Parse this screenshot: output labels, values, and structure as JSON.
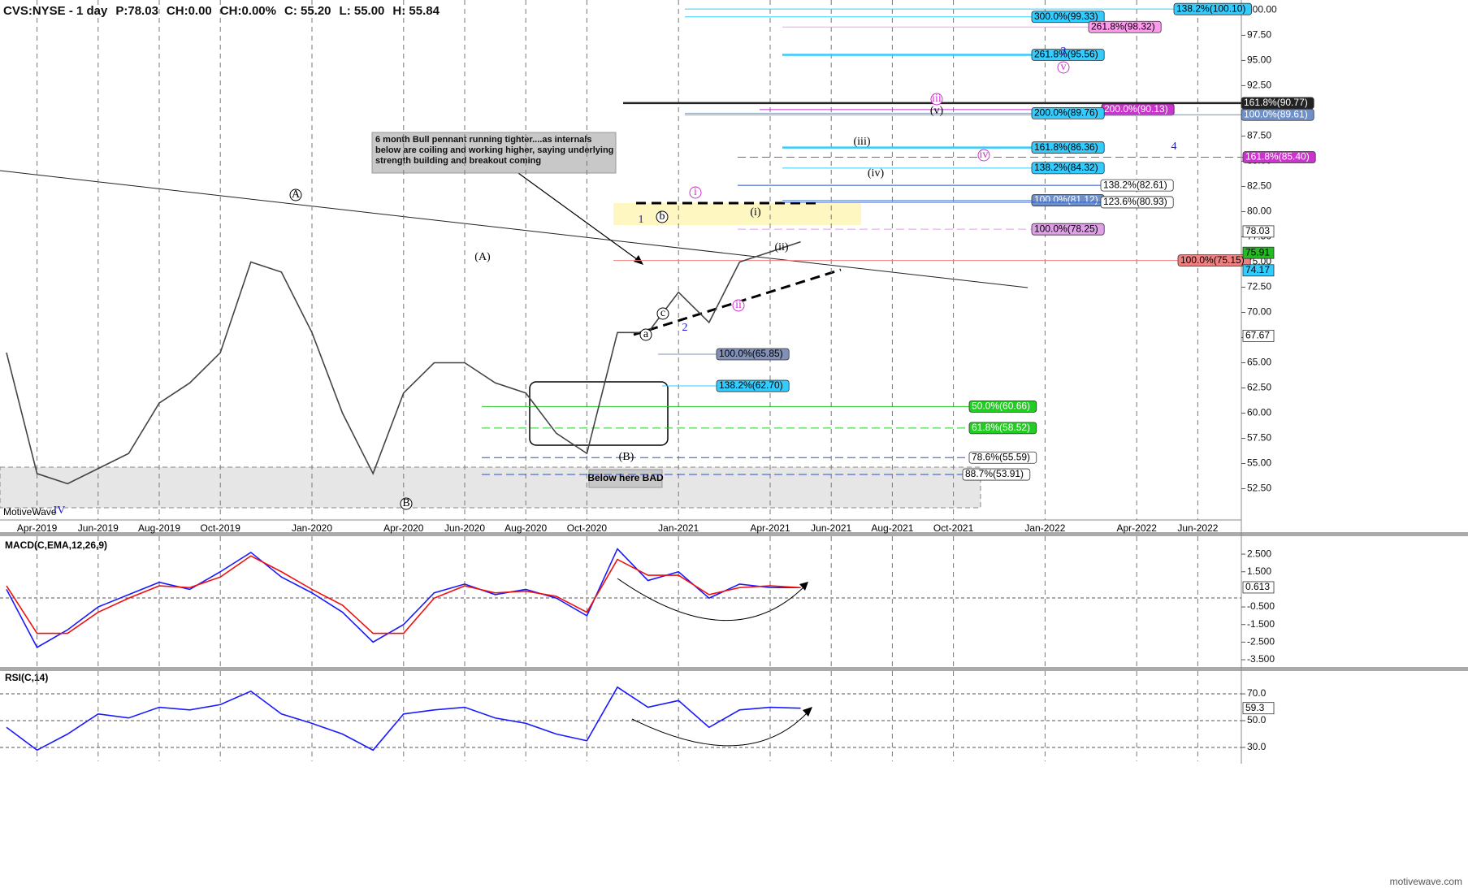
{
  "header": {
    "symbol": "CVS:NYSE - 1 day",
    "price": "P:78.03",
    "change": "CH:0.00",
    "change_pct": "CH:0.00%",
    "close": "C: 55.20",
    "low": "L: 55.00",
    "high": "H: 55.84"
  },
  "annotation": "6 month Bull pennant running tighter....as internals below are coiling and working higher, saying underlying strength building and breakout coming",
  "bad_note": "Below here BAD",
  "brand": "MotiveWave",
  "footer": "motivewave.com",
  "waves": [
    "A",
    "B",
    "(A)",
    "(B)",
    "1",
    "2",
    "3",
    "4",
    "IV",
    "i",
    "ii",
    "iii",
    "iv",
    "v",
    "(i)",
    "(ii)",
    "(iii)",
    "(iv)",
    "(v)",
    "a",
    "b",
    "c"
  ],
  "chart_data": [
    {
      "type": "line",
      "title": "CVS:NYSE - 1 day",
      "xlim": [
        "2019-03",
        "2022-07"
      ],
      "xticks": [
        {
          "value": "2019-04",
          "label": "Apr-2019"
        },
        {
          "value": "2019-06",
          "label": "Jun-2019"
        },
        {
          "value": "2019-08",
          "label": "Aug-2019"
        },
        {
          "value": "2019-10",
          "label": "Oct-2019"
        },
        {
          "value": "2020-01",
          "label": "Jan-2020"
        },
        {
          "value": "2020-04",
          "label": "Apr-2020"
        },
        {
          "value": "2020-06",
          "label": "Jun-2020"
        },
        {
          "value": "2020-08",
          "label": "Aug-2020"
        },
        {
          "value": "2020-10",
          "label": "Oct-2020"
        },
        {
          "value": "2021-01",
          "label": "Jan-2021"
        },
        {
          "value": "2021-04",
          "label": "Apr-2021"
        },
        {
          "value": "2021-06",
          "label": "Jun-2021"
        },
        {
          "value": "2021-08",
          "label": "Aug-2021"
        },
        {
          "value": "2021-10",
          "label": "Oct-2021"
        },
        {
          "value": "2022-01",
          "label": "Jan-2022"
        },
        {
          "value": "2022-04",
          "label": "Apr-2022"
        },
        {
          "value": "2022-06",
          "label": "Jun-2022"
        }
      ],
      "x": [
        "2019-03",
        "2019-04",
        "2019-05",
        "2019-06",
        "2019-07",
        "2019-08",
        "2019-09",
        "2019-10",
        "2019-11",
        "2019-12",
        "2020-01",
        "2020-02",
        "2020-03",
        "2020-04",
        "2020-05",
        "2020-06",
        "2020-07",
        "2020-08",
        "2020-09",
        "2020-10",
        "2020-11",
        "2020-12",
        "2021-01",
        "2021-02",
        "2021-03",
        "2021-04",
        "2021-05"
      ],
      "series": [
        {
          "color": "#444444",
          "values": [
            66,
            54,
            53,
            54.5,
            56,
            61,
            63,
            66,
            75,
            74,
            68,
            60,
            54,
            62,
            65,
            65,
            63,
            62,
            58,
            56,
            68,
            68,
            72,
            69,
            75,
            76,
            77
          ]
        }
      ],
      "ylim": [
        49.4,
        101
      ],
      "yticks": [
        {
          "value": 100,
          "label": "100.00"
        },
        {
          "value": 97.5,
          "label": "97.50"
        },
        {
          "value": 95,
          "label": "95.00"
        },
        {
          "value": 92.5,
          "label": "92.50"
        },
        {
          "value": 90,
          "label": "90.00"
        },
        {
          "value": 87.5,
          "label": "87.50"
        },
        {
          "value": 85,
          "label": "85.00"
        },
        {
          "value": 82.5,
          "label": "82.50"
        },
        {
          "value": 80,
          "label": "80.00"
        },
        {
          "value": 77.5,
          "label": "77.50"
        },
        {
          "value": 75,
          "label": "75.00"
        },
        {
          "value": 72.5,
          "label": "72.50"
        },
        {
          "value": 70,
          "label": "70.00"
        },
        {
          "value": 67.5,
          "label": "67.50"
        },
        {
          "value": 65,
          "label": "65.00"
        },
        {
          "value": 62.5,
          "label": "62.50"
        },
        {
          "value": 60,
          "label": "60.00"
        },
        {
          "value": 57.5,
          "label": "57.50"
        },
        {
          "value": 55,
          "label": "55.00"
        },
        {
          "value": 52.5,
          "label": "52.50"
        }
      ],
      "markers": [
        78.03,
        75.91,
        74.17,
        67.67
      ],
      "marker_colors": [
        "#ffffff",
        "#22bb22",
        "#33ccff",
        "#ffffff"
      ],
      "levels": [
        {
          "value": 100.1,
          "label": "138.2%(100.10)",
          "color": "#33ccff"
        },
        {
          "value": 99.33,
          "label": "300.0%(99.33)",
          "color": "#33ccff"
        },
        {
          "value": 98.32,
          "label": "261.8%(98.32)",
          "color": "#ff99ee"
        },
        {
          "value": 95.56,
          "label": "261.8%(95.56)",
          "color": "#33ccff"
        },
        {
          "value": 90.13,
          "label": "200.0%(90.13)",
          "color": "#cc33cc"
        },
        {
          "value": 90.77,
          "label": "161.8%(90.77)",
          "color": "#222222"
        },
        {
          "value": 89.61,
          "label": "100.0%(89.61)",
          "color": "#6f8fc8"
        },
        {
          "value": 89.76,
          "label": "200.0%(89.76)",
          "color": "#33ccff"
        },
        {
          "value": 86.36,
          "label": "161.8%(86.36)",
          "color": "#33ccff"
        },
        {
          "value": 85.4,
          "label": "161.8%(85.40)",
          "color": "#cc33cc"
        },
        {
          "value": 84.32,
          "label": "138.2%(84.32)",
          "color": "#33ccff"
        },
        {
          "value": 82.61,
          "label": "138.2%(82.61)",
          "color": "#ffffff"
        },
        {
          "value": 81.12,
          "label": "100.0%(81.12)",
          "color": "#6f8fc8"
        },
        {
          "value": 80.93,
          "label": "123.6%(80.93)",
          "color": "#ffffff"
        },
        {
          "value": 78.25,
          "label": "100.0%(78.25)",
          "color": "#e0a0e8"
        },
        {
          "value": 75.15,
          "label": "100.0%(75.15)",
          "color": "#f08080"
        },
        {
          "value": 65.85,
          "label": "100.0%(65.85)",
          "color": "#8090b8"
        },
        {
          "value": 62.7,
          "label": "138.2%(62.70)",
          "color": "#33ccff"
        },
        {
          "value": 60.66,
          "label": "50.0%(60.66)",
          "color": "#22cc22"
        },
        {
          "value": 58.52,
          "label": "61.8%(58.52)",
          "color": "#22cc22"
        },
        {
          "value": 55.59,
          "label": "78.6%(55.59)",
          "color": "#ffffff"
        },
        {
          "value": 53.91,
          "label": "88.7%(53.91)",
          "color": "#ffffff"
        }
      ]
    },
    {
      "type": "line",
      "title": "MACD(C,EMA,12,26,9)",
      "series": [
        {
          "color": "#1a1aff",
          "values": [
            0.5,
            -2.8,
            -1.8,
            -0.5,
            0.2,
            0.9,
            0.5,
            1.5,
            2.6,
            1.2,
            0.3,
            -0.8,
            -2.5,
            -1.5,
            0.3,
            0.8,
            0.2,
            0.5,
            0.0,
            -1.0,
            2.8,
            1.0,
            1.5,
            0.0,
            0.8,
            0.6,
            0.6
          ]
        },
        {
          "color": "#ee1111",
          "values": [
            0.7,
            -2.0,
            -2.0,
            -0.8,
            0.0,
            0.7,
            0.6,
            1.2,
            2.4,
            1.5,
            0.5,
            -0.4,
            -2.0,
            -2.0,
            0.0,
            0.7,
            0.3,
            0.4,
            0.1,
            -0.8,
            2.2,
            1.3,
            1.3,
            0.2,
            0.6,
            0.7,
            0.6
          ]
        }
      ],
      "ylim": [
        -3.96,
        3.52
      ],
      "yticks": [
        {
          "value": 2.5,
          "label": "2.500"
        },
        {
          "value": 1.5,
          "label": "1.500"
        },
        {
          "value": -0.5,
          "label": "-0.500"
        },
        {
          "value": -1.5,
          "label": "-1.500"
        },
        {
          "value": -2.5,
          "label": "-2.500"
        },
        {
          "value": -3.5,
          "label": "-3.500"
        }
      ],
      "markers": [
        0.613
      ],
      "marker_colors": [
        "#ffffff"
      ]
    },
    {
      "type": "line",
      "title": "RSI(C,14)",
      "series": [
        {
          "color": "#1a1aff",
          "values": [
            45,
            28,
            40,
            55,
            52,
            60,
            58,
            62,
            72,
            55,
            48,
            40,
            28,
            55,
            58,
            60,
            52,
            48,
            40,
            35,
            75,
            60,
            65,
            45,
            58,
            60,
            59.3
          ]
        }
      ],
      "ylim": [
        19.7,
        87
      ],
      "yticks": [
        {
          "value": 70,
          "label": "70.0"
        },
        {
          "value": 50,
          "label": "50.0"
        },
        {
          "value": 30,
          "label": "30.0"
        }
      ],
      "grid": true,
      "markers": [
        59.3
      ],
      "marker_colors": [
        "#ffffff"
      ]
    }
  ]
}
